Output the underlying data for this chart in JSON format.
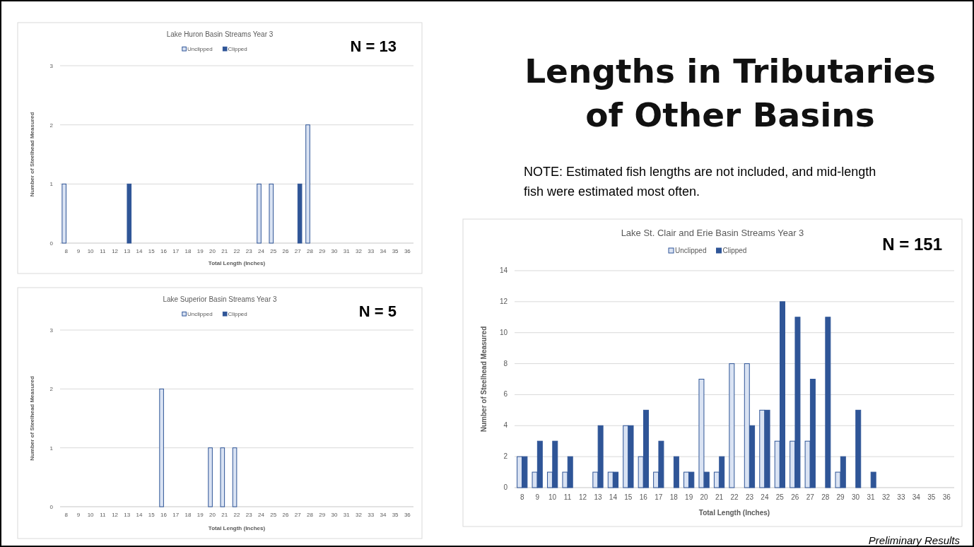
{
  "chart_data": [
    {
      "type": "bar",
      "title": "Lake Huron Basin Streams Year 3",
      "xlabel": "Total Length (Inches)",
      "ylabel": "Number of Steelhead Measured",
      "categories": [
        "8",
        "9",
        "10",
        "11",
        "12",
        "13",
        "14",
        "15",
        "16",
        "17",
        "18",
        "19",
        "20",
        "21",
        "22",
        "23",
        "24",
        "25",
        "26",
        "27",
        "28",
        "29",
        "30",
        "31",
        "32",
        "33",
        "34",
        "35",
        "36"
      ],
      "series": [
        {
          "name": "Unclipped",
          "color": "#dae3f3",
          "values": [
            1,
            0,
            0,
            0,
            0,
            0,
            0,
            0,
            0,
            0,
            0,
            0,
            0,
            0,
            0,
            0,
            1,
            1,
            0,
            0,
            2,
            0,
            0,
            0,
            0,
            0,
            0,
            0,
            0
          ]
        },
        {
          "name": "Clipped",
          "color": "#2f5597",
          "values": [
            0,
            0,
            0,
            0,
            0,
            1,
            0,
            0,
            0,
            0,
            0,
            0,
            0,
            0,
            0,
            0,
            0,
            0,
            0,
            1,
            0,
            0,
            0,
            0,
            0,
            0,
            0,
            0,
            0
          ]
        }
      ],
      "ylim": [
        0,
        3
      ],
      "yticks": [
        0,
        1,
        2,
        3
      ],
      "grid": "y",
      "legend": "top",
      "annotations": [
        "N = 13"
      ]
    },
    {
      "type": "other",
      "title": "Lengths in Tributaries of Other Basins",
      "annotations": [
        "NOTE: Estimated fish lengths are not included, and mid-length fish were estimated most often.",
        "Preliminary Results"
      ]
    },
    {
      "type": "bar",
      "title": "Lake Superior Basin Streams Year 3",
      "xlabel": "Total Length (Inches)",
      "ylabel": "Number of Steelhead Measured",
      "categories": [
        "8",
        "9",
        "10",
        "11",
        "12",
        "13",
        "14",
        "15",
        "16",
        "17",
        "18",
        "19",
        "20",
        "21",
        "22",
        "23",
        "24",
        "25",
        "26",
        "27",
        "28",
        "29",
        "30",
        "31",
        "32",
        "33",
        "34",
        "35",
        "36"
      ],
      "series": [
        {
          "name": "Unclipped",
          "color": "#dae3f3",
          "values": [
            0,
            0,
            0,
            0,
            0,
            0,
            0,
            0,
            2,
            0,
            0,
            0,
            1,
            1,
            1,
            0,
            0,
            0,
            0,
            0,
            0,
            0,
            0,
            0,
            0,
            0,
            0,
            0,
            0
          ]
        },
        {
          "name": "Clipped",
          "color": "#2f5597",
          "values": [
            0,
            0,
            0,
            0,
            0,
            0,
            0,
            0,
            0,
            0,
            0,
            0,
            0,
            0,
            0,
            0,
            0,
            0,
            0,
            0,
            0,
            0,
            0,
            0,
            0,
            0,
            0,
            0,
            0
          ]
        }
      ],
      "ylim": [
        0,
        3
      ],
      "yticks": [
        0,
        1,
        2,
        3
      ],
      "grid": "y",
      "legend": "top",
      "annotations": [
        "N = 5"
      ]
    },
    {
      "type": "bar",
      "title": "Lake St. Clair and Erie Basin Streams Year 3",
      "xlabel": "Total Length (Inches)",
      "ylabel": "Number of Steelhead Measured",
      "categories": [
        "8",
        "9",
        "10",
        "11",
        "12",
        "13",
        "14",
        "15",
        "16",
        "17",
        "18",
        "19",
        "20",
        "21",
        "22",
        "23",
        "24",
        "25",
        "26",
        "27",
        "28",
        "29",
        "30",
        "31",
        "32",
        "33",
        "34",
        "35",
        "36"
      ],
      "series": [
        {
          "name": "Unclipped",
          "color": "#dae3f3",
          "values": [
            2,
            1,
            1,
            1,
            0,
            1,
            1,
            4,
            2,
            1,
            0,
            1,
            7,
            1,
            8,
            8,
            5,
            3,
            3,
            3,
            0,
            1,
            0,
            0,
            0,
            0,
            0,
            0,
            0
          ]
        },
        {
          "name": "Clipped",
          "color": "#2f5597",
          "values": [
            2,
            3,
            3,
            2,
            0,
            4,
            1,
            4,
            5,
            3,
            2,
            1,
            1,
            2,
            0,
            4,
            5,
            12,
            11,
            7,
            11,
            2,
            5,
            1,
            0,
            0,
            0,
            0,
            0
          ]
        }
      ],
      "ylim": [
        0,
        14
      ],
      "yticks": [
        0,
        2,
        4,
        6,
        8,
        10,
        12,
        14
      ],
      "grid": "y",
      "legend": "top",
      "annotations": [
        "N = 151"
      ]
    }
  ]
}
